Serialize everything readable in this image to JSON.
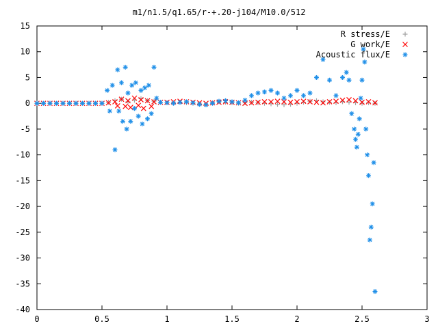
{
  "chart_data": {
    "type": "scatter",
    "title": "m1/n1.5/q1.65/r-+.20-j104/M10.0/512",
    "xlabel": "",
    "ylabel": "",
    "xlim": [
      0,
      3
    ],
    "ylim": [
      -40,
      15
    ],
    "xticks": [
      0,
      0.5,
      1,
      1.5,
      2,
      2.5,
      3
    ],
    "xtick_labels": [
      "0",
      "0.5",
      "1",
      "1.5",
      "2",
      "2.5",
      "3"
    ],
    "yticks": [
      15,
      10,
      5,
      0,
      -5,
      -10,
      -15,
      -20,
      -25,
      -30,
      -35,
      -40
    ],
    "ytick_labels": [
      "15",
      "10",
      "5",
      "0",
      "-5",
      "-10",
      "-15",
      "-20",
      "-25",
      "-30",
      "-35",
      "-40"
    ],
    "grid": false,
    "legend_position": "top-right",
    "series": [
      {
        "name": "R stress/E",
        "marker": "plus",
        "color": "#a0a0a0",
        "x": [
          0.0,
          0.05,
          0.1,
          0.15,
          0.2,
          0.25,
          0.3,
          0.35,
          0.4,
          0.45,
          0.5,
          0.55,
          0.6,
          0.65,
          0.7,
          0.75,
          0.8,
          0.85,
          0.9,
          0.95,
          1.0,
          1.05,
          1.1,
          1.15,
          1.2,
          1.25,
          1.3,
          1.35,
          1.4,
          1.45,
          1.5,
          1.55,
          1.6,
          1.65,
          1.7,
          1.75,
          1.8,
          1.85,
          1.9,
          1.95,
          2.0,
          2.05,
          2.1,
          2.15,
          2.2,
          2.25,
          2.3,
          2.35,
          2.4,
          2.45,
          2.5,
          2.55,
          2.6
        ],
        "y": [
          0,
          0,
          0,
          0,
          0,
          0,
          0,
          0,
          0,
          0,
          0,
          0.2,
          0.5,
          0.8,
          0.3,
          0.6,
          0.9,
          0.5,
          0.4,
          0.2,
          0.1,
          0.1,
          0.2,
          0.1,
          0.0,
          -0.1,
          -0.2,
          0.1,
          0.3,
          0.2,
          0.1,
          0.0,
          0.1,
          0.2,
          0.1,
          0.0,
          -0.1,
          -0.2,
          -0.3,
          -0.2,
          0.0,
          0.2,
          0.4,
          0.5,
          0.3,
          0.2,
          0.1,
          0.3,
          0.2,
          0.1,
          0.0,
          0.1,
          0.0
        ]
      },
      {
        "name": "G work/E",
        "marker": "cross",
        "color": "#ff0000",
        "x": [
          0.0,
          0.05,
          0.1,
          0.15,
          0.2,
          0.25,
          0.3,
          0.35,
          0.4,
          0.45,
          0.5,
          0.55,
          0.6,
          0.62,
          0.65,
          0.68,
          0.7,
          0.72,
          0.75,
          0.78,
          0.8,
          0.82,
          0.85,
          0.88,
          0.9,
          0.95,
          1.0,
          1.05,
          1.1,
          1.15,
          1.2,
          1.25,
          1.3,
          1.35,
          1.4,
          1.45,
          1.5,
          1.55,
          1.6,
          1.65,
          1.7,
          1.75,
          1.8,
          1.85,
          1.9,
          1.95,
          2.0,
          2.05,
          2.1,
          2.15,
          2.2,
          2.25,
          2.3,
          2.35,
          2.4,
          2.45,
          2.5,
          2.55,
          2.6
        ],
        "y": [
          0,
          0,
          0,
          0,
          0,
          0,
          0,
          0,
          0,
          0,
          0,
          0.1,
          0.3,
          -0.5,
          0.8,
          -0.6,
          0.5,
          -0.8,
          1.0,
          -0.4,
          0.7,
          -1.0,
          0.5,
          -0.6,
          0.3,
          0.2,
          0.2,
          0.3,
          0.4,
          0.3,
          0.2,
          0.1,
          0.0,
          0.1,
          0.2,
          0.3,
          0.2,
          0.1,
          0.0,
          0.1,
          0.2,
          0.3,
          0.3,
          0.4,
          0.3,
          0.2,
          0.3,
          0.4,
          0.3,
          0.2,
          0.1,
          0.3,
          0.4,
          0.6,
          0.7,
          0.5,
          0.2,
          0.3,
          0.1
        ]
      },
      {
        "name": "Acoustic flux/E",
        "marker": "star",
        "color": "#1f8fe8",
        "x": [
          0.0,
          0.05,
          0.1,
          0.15,
          0.2,
          0.25,
          0.3,
          0.35,
          0.4,
          0.45,
          0.5,
          0.54,
          0.56,
          0.58,
          0.6,
          0.62,
          0.63,
          0.65,
          0.66,
          0.68,
          0.69,
          0.7,
          0.72,
          0.73,
          0.75,
          0.76,
          0.78,
          0.8,
          0.81,
          0.83,
          0.85,
          0.86,
          0.88,
          0.9,
          0.92,
          0.95,
          1.0,
          1.05,
          1.1,
          1.15,
          1.2,
          1.25,
          1.3,
          1.35,
          1.4,
          1.45,
          1.5,
          1.55,
          1.6,
          1.65,
          1.7,
          1.75,
          1.8,
          1.85,
          1.9,
          1.95,
          2.0,
          2.05,
          2.1,
          2.15,
          2.2,
          2.25,
          2.3,
          2.35,
          2.38,
          2.4,
          2.42,
          2.44,
          2.45,
          2.46,
          2.47,
          2.48,
          2.49,
          2.5,
          2.51,
          2.52,
          2.53,
          2.54,
          2.55,
          2.56,
          2.57,
          2.58,
          2.59,
          2.6
        ],
        "y": [
          0,
          0,
          0,
          0,
          0,
          0,
          0,
          0,
          0,
          0,
          0,
          2.5,
          -1.5,
          3.5,
          -9.0,
          6.5,
          -1.5,
          4.0,
          -3.5,
          7.0,
          -5.0,
          2.0,
          -3.5,
          3.5,
          -1.0,
          4.0,
          -2.5,
          2.5,
          -4.0,
          3.0,
          -3.0,
          3.5,
          -2.0,
          7.0,
          1.0,
          0.2,
          0.1,
          0.0,
          0.2,
          0.3,
          0.1,
          -0.2,
          -0.3,
          0.0,
          0.4,
          0.5,
          0.3,
          0.1,
          0.6,
          1.5,
          2.0,
          2.2,
          2.5,
          2.0,
          1.0,
          1.5,
          2.5,
          1.5,
          2.0,
          5.0,
          8.5,
          4.5,
          1.5,
          5.0,
          6.0,
          4.5,
          -2.0,
          -5.0,
          -7.0,
          -8.5,
          -6.0,
          -3.0,
          1.0,
          4.5,
          10.5,
          8.0,
          -5.0,
          -10.0,
          -14.0,
          -26.5,
          -24.0,
          -19.5,
          -11.5,
          -36.5
        ]
      }
    ]
  }
}
